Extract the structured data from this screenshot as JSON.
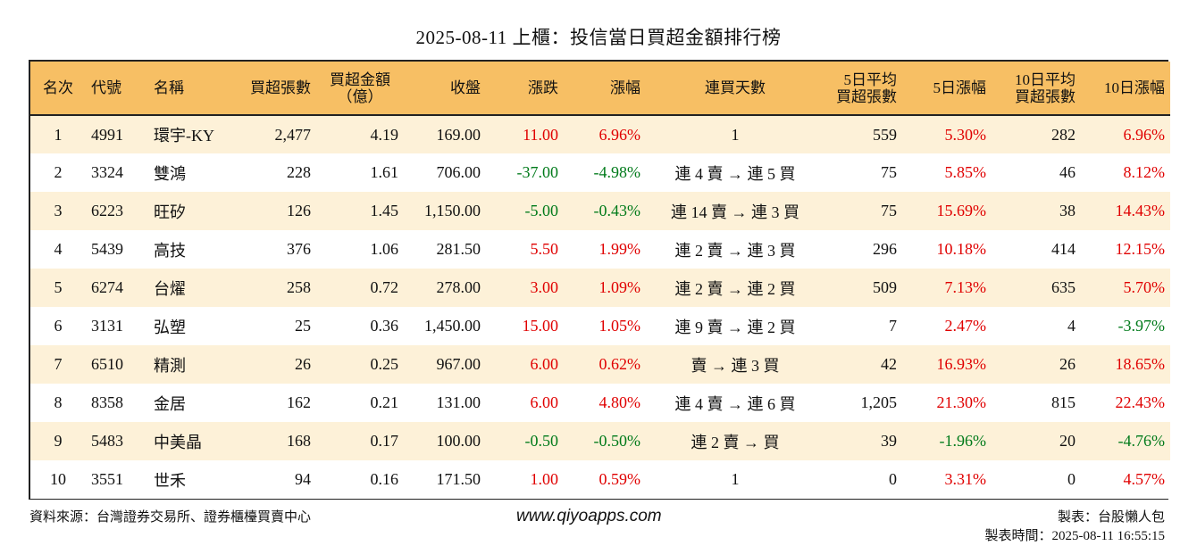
{
  "title": "2025-08-11 上櫃：投信當日買超金額排行榜",
  "headers": {
    "rank": "名次",
    "code": "代號",
    "name": "名稱",
    "buy_lots": "買超張數",
    "amount_line1": "買超金額",
    "amount_line2": "（億）",
    "close": "收盤",
    "change": "漲跌",
    "pct": "漲幅",
    "streak": "連買天數",
    "avg5_line1": "5日平均",
    "avg5_line2": "買超張數",
    "pct5": "5日漲幅",
    "avg10_line1": "10日平均",
    "avg10_line2": "買超張數",
    "pct10": "10日漲幅"
  },
  "rows": [
    {
      "rank": "1",
      "code": "4991",
      "name": "環宇-KY",
      "buy_lots": "2,477",
      "amount": "4.19",
      "close": "169.00",
      "change": "11.00",
      "pct": "6.96%",
      "streak": "1",
      "avg5": "559",
      "pct5": "5.30%",
      "avg10": "282",
      "pct10": "6.96%"
    },
    {
      "rank": "2",
      "code": "3324",
      "name": "雙鴻",
      "buy_lots": "228",
      "amount": "1.61",
      "close": "706.00",
      "change": "-37.00",
      "pct": "-4.98%",
      "streak": "連 4 賣 → 連 5 買",
      "avg5": "75",
      "pct5": "5.85%",
      "avg10": "46",
      "pct10": "8.12%"
    },
    {
      "rank": "3",
      "code": "6223",
      "name": "旺矽",
      "buy_lots": "126",
      "amount": "1.45",
      "close": "1,150.00",
      "change": "-5.00",
      "pct": "-0.43%",
      "streak": "連 14 賣 → 連 3 買",
      "avg5": "75",
      "pct5": "15.69%",
      "avg10": "38",
      "pct10": "14.43%"
    },
    {
      "rank": "4",
      "code": "5439",
      "name": "高技",
      "buy_lots": "376",
      "amount": "1.06",
      "close": "281.50",
      "change": "5.50",
      "pct": "1.99%",
      "streak": "連 2 賣 → 連 3 買",
      "avg5": "296",
      "pct5": "10.18%",
      "avg10": "414",
      "pct10": "12.15%"
    },
    {
      "rank": "5",
      "code": "6274",
      "name": "台燿",
      "buy_lots": "258",
      "amount": "0.72",
      "close": "278.00",
      "change": "3.00",
      "pct": "1.09%",
      "streak": "連 2 賣 → 連 2 買",
      "avg5": "509",
      "pct5": "7.13%",
      "avg10": "635",
      "pct10": "5.70%"
    },
    {
      "rank": "6",
      "code": "3131",
      "name": "弘塑",
      "buy_lots": "25",
      "amount": "0.36",
      "close": "1,450.00",
      "change": "15.00",
      "pct": "1.05%",
      "streak": "連 9 賣 → 連 2 買",
      "avg5": "7",
      "pct5": "2.47%",
      "avg10": "4",
      "pct10": "-3.97%"
    },
    {
      "rank": "7",
      "code": "6510",
      "name": "精測",
      "buy_lots": "26",
      "amount": "0.25",
      "close": "967.00",
      "change": "6.00",
      "pct": "0.62%",
      "streak": "賣 → 連 3 買",
      "avg5": "42",
      "pct5": "16.93%",
      "avg10": "26",
      "pct10": "18.65%"
    },
    {
      "rank": "8",
      "code": "8358",
      "name": "金居",
      "buy_lots": "162",
      "amount": "0.21",
      "close": "131.00",
      "change": "6.00",
      "pct": "4.80%",
      "streak": "連 4 賣 → 連 6 買",
      "avg5": "1,205",
      "pct5": "21.30%",
      "avg10": "815",
      "pct10": "22.43%"
    },
    {
      "rank": "9",
      "code": "5483",
      "name": "中美晶",
      "buy_lots": "168",
      "amount": "0.17",
      "close": "100.00",
      "change": "-0.50",
      "pct": "-0.50%",
      "streak": "連 2 賣 → 買",
      "avg5": "39",
      "pct5": "-1.96%",
      "avg10": "20",
      "pct10": "-4.76%"
    },
    {
      "rank": "10",
      "code": "3551",
      "name": "世禾",
      "buy_lots": "94",
      "amount": "0.16",
      "close": "171.50",
      "change": "1.00",
      "pct": "0.59%",
      "streak": "1",
      "avg5": "0",
      "pct5": "3.31%",
      "avg10": "0",
      "pct10": "4.57%"
    }
  ],
  "colors": {
    "header_bg": "#f7bf64",
    "stripe_bg": "#fdf1d8",
    "up": "#e00000",
    "down": "#007a1a"
  },
  "footer": {
    "source": "資料來源：台灣證券交易所、證券櫃檯買賣中心",
    "website": "www.qiyoapps.com",
    "maker": "製表：台股懶人包",
    "made_time": "製表時間：2025-08-11 16:55:15"
  }
}
